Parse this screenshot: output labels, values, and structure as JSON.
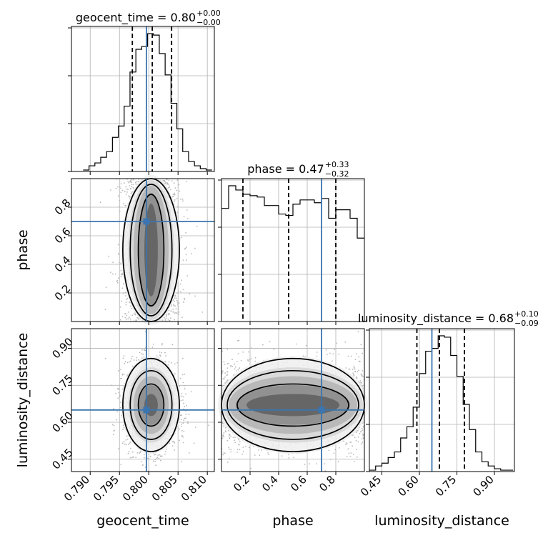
{
  "chart_data": {
    "type": "corner",
    "truth_color": "#3b75af",
    "parameters": [
      "geocent_time",
      "phase",
      "luminosity_distance"
    ],
    "truths": {
      "geocent_time": 0.7996,
      "phase": 0.7,
      "luminosity_distance": 0.65
    },
    "titles": [
      {
        "param": "geocent_time",
        "text": "geocent_time = 0.80",
        "sup": "+0.00",
        "sub": "−0.00"
      },
      {
        "param": "phase",
        "text": "phase = 0.47",
        "sup": "+0.33",
        "sub": "−0.32"
      },
      {
        "param": "luminosity_distance",
        "text": "luminosity_distance = 0.68",
        "sup": "+0.10",
        "sub": "−0.09"
      }
    ],
    "ranges": {
      "geocent_time": [
        0.7868,
        0.8112
      ],
      "phase": [
        0.0,
        1.0
      ],
      "luminosity_distance": [
        0.4,
        0.98
      ]
    },
    "ticks": {
      "geocent_time": [
        "0.790",
        "0.795",
        "0.800",
        "0.805",
        "0.810"
      ],
      "phase": [
        "0.2",
        "0.4",
        "0.6",
        "0.8"
      ],
      "luminosity_distance": [
        "0.45",
        "0.60",
        "0.75",
        "0.90"
      ]
    },
    "tick_values": {
      "geocent_time": [
        0.79,
        0.795,
        0.8,
        0.805,
        0.81
      ],
      "phase": [
        0.2,
        0.4,
        0.6,
        0.8
      ],
      "luminosity_distance": [
        0.45,
        0.6,
        0.75,
        0.9
      ]
    },
    "quantiles": {
      "geocent_time": [
        0.7972,
        0.8006,
        0.8039
      ],
      "phase": [
        0.15,
        0.47,
        0.8
      ],
      "luminosity_distance": [
        0.59,
        0.68,
        0.78
      ]
    },
    "histograms": {
      "geocent_time": {
        "edges": [
          0.7888,
          0.7898,
          0.7908,
          0.7918,
          0.7928,
          0.7938,
          0.7948,
          0.7958,
          0.7968,
          0.7978,
          0.7988,
          0.7998,
          0.8008,
          0.8018,
          0.8028,
          0.8038,
          0.8048,
          0.8058,
          0.8068,
          0.8078,
          0.8088,
          0.8098,
          0.8108
        ],
        "counts": [
          0.01,
          0.04,
          0.06,
          0.1,
          0.14,
          0.24,
          0.32,
          0.46,
          0.7,
          0.86,
          0.88,
          0.97,
          0.96,
          0.83,
          0.68,
          0.48,
          0.3,
          0.14,
          0.07,
          0.04,
          0.02,
          0.01
        ]
      },
      "phase": {
        "edges": [
          0.0,
          0.05,
          0.1,
          0.15,
          0.2,
          0.25,
          0.3,
          0.35,
          0.4,
          0.45,
          0.5,
          0.55,
          0.6,
          0.65,
          0.7,
          0.75,
          0.8,
          0.85,
          0.9,
          0.95,
          1.0
        ],
        "counts": [
          0.8,
          0.96,
          0.93,
          0.9,
          0.89,
          0.88,
          0.82,
          0.82,
          0.76,
          0.75,
          0.83,
          0.86,
          0.86,
          0.84,
          0.87,
          0.73,
          0.79,
          0.79,
          0.73,
          0.59
        ]
      },
      "luminosity_distance": {
        "edges": [
          0.4,
          0.425,
          0.45,
          0.475,
          0.5,
          0.525,
          0.55,
          0.575,
          0.6,
          0.625,
          0.65,
          0.675,
          0.7,
          0.725,
          0.75,
          0.775,
          0.8,
          0.825,
          0.85,
          0.875,
          0.9,
          0.925,
          0.95,
          0.975
        ],
        "counts": [
          0.01,
          0.04,
          0.06,
          0.1,
          0.14,
          0.24,
          0.32,
          0.46,
          0.7,
          0.86,
          0.88,
          0.97,
          0.96,
          0.83,
          0.68,
          0.48,
          0.3,
          0.14,
          0.07,
          0.04,
          0.02,
          0.01,
          0.01
        ]
      }
    },
    "density_centers": {
      "geocent_time_vs_phase": {
        "x": 0.8004,
        "y": 0.5,
        "sx": 0.0023,
        "sy": 0.5
      },
      "geocent_time_vs_luminosity_distance": {
        "x": 0.8004,
        "y": 0.67,
        "sx": 0.0023,
        "sy": 0.09
      },
      "phase_vs_luminosity_distance": {
        "x": 0.5,
        "y": 0.67,
        "sx": 0.5,
        "sy": 0.09
      }
    },
    "grid": true,
    "legend": "none"
  }
}
